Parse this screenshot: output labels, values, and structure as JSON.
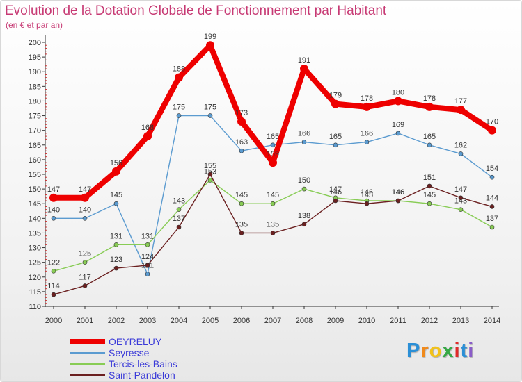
{
  "title": "Evolution de la Dotation Globale de Fonctionnement par Habitant",
  "subtitle": "(en € et par an)",
  "chart_data": {
    "type": "line",
    "title": "Evolution de la Dotation Globale de Fonctionnement par Habitant",
    "subtitle": "(en € et par an)",
    "xlabel": "",
    "ylabel": "",
    "x": [
      "2000",
      "2001",
      "2002",
      "2003",
      "2004",
      "2005",
      "2006",
      "2007",
      "2008",
      "2009",
      "2010",
      "2011",
      "2012",
      "2013",
      "2014"
    ],
    "ylim": [
      110,
      200
    ],
    "yticks": [
      110,
      115,
      120,
      125,
      130,
      135,
      140,
      145,
      150,
      155,
      160,
      165,
      170,
      175,
      180,
      185,
      190,
      195,
      200
    ],
    "grid": false,
    "legend_position": "bottom-left",
    "series": [
      {
        "name": "OEYRELUY",
        "color": "#ee0000",
        "values": [
          147,
          147,
          156,
          168,
          188,
          199,
          173,
          159,
          191,
          179,
          178,
          180,
          178,
          177,
          170
        ]
      },
      {
        "name": "Seyresse",
        "color": "#5b9bd0",
        "values": [
          140,
          140,
          145,
          121,
          175,
          175,
          163,
          165,
          166,
          165,
          166,
          169,
          165,
          162,
          154
        ]
      },
      {
        "name": "Tercis-les-Bains",
        "color": "#88cc55",
        "values": [
          122,
          125,
          131,
          131,
          143,
          153,
          145,
          145,
          150,
          147,
          146,
          146,
          145,
          143,
          137
        ]
      },
      {
        "name": "Saint-Pandelon",
        "color": "#6b2020",
        "values": [
          114,
          117,
          123,
          124,
          137,
          155,
          135,
          135,
          138,
          146,
          145,
          146,
          151,
          147,
          144
        ]
      }
    ]
  },
  "logo": {
    "letters": [
      "P",
      "r",
      "o",
      "x",
      "i",
      "t",
      "i"
    ],
    "colors": [
      "#2b8fd6",
      "#f08a1c",
      "#f2c21a",
      "#36a845",
      "#e02a2a",
      "#2b8fd6",
      "#8a5cc8"
    ]
  }
}
